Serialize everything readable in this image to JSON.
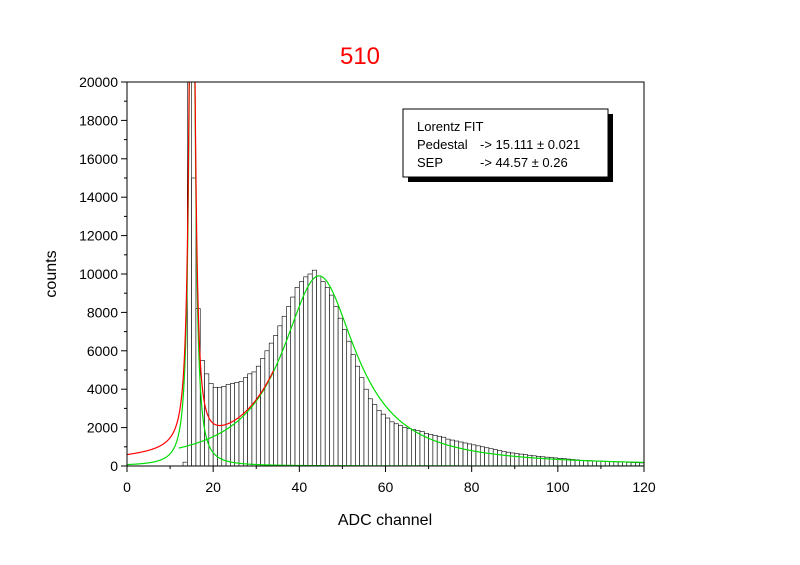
{
  "chart_data": {
    "type": "bar",
    "title": "510",
    "title_color": "#ff0000",
    "xlabel": "ADC channel",
    "ylabel": "counts",
    "xlim": [
      0,
      120
    ],
    "ylim": [
      0,
      20000
    ],
    "x_ticks": [
      "0",
      "20",
      "40",
      "60",
      "80",
      "100",
      "120"
    ],
    "y_ticks": [
      "0",
      "2000",
      "4000",
      "6000",
      "8000",
      "10000",
      "12000",
      "14000",
      "16000",
      "18000",
      "20000"
    ],
    "grid": false,
    "bin_width": 1,
    "bar_fill": "#ffffff",
    "bar_stroke": "#000000",
    "histogram": {
      "x": [
        0,
        1,
        2,
        3,
        4,
        5,
        6,
        7,
        8,
        9,
        10,
        11,
        12,
        13,
        14,
        15,
        16,
        17,
        18,
        19,
        20,
        21,
        22,
        23,
        24,
        25,
        26,
        27,
        28,
        29,
        30,
        31,
        32,
        33,
        34,
        35,
        36,
        37,
        38,
        39,
        40,
        41,
        42,
        43,
        44,
        45,
        46,
        47,
        48,
        49,
        50,
        51,
        52,
        53,
        54,
        55,
        56,
        57,
        58,
        59,
        60,
        61,
        62,
        63,
        64,
        65,
        66,
        67,
        68,
        69,
        70,
        71,
        72,
        73,
        74,
        75,
        76,
        77,
        78,
        79,
        80,
        81,
        82,
        83,
        84,
        85,
        86,
        87,
        88,
        89,
        90,
        91,
        92,
        93,
        94,
        95,
        96,
        97,
        98,
        99,
        100,
        101,
        102,
        103,
        104,
        105,
        106,
        107,
        108,
        109,
        110,
        111,
        112,
        113,
        114,
        115,
        116,
        117,
        118,
        119
      ],
      "counts": [
        0,
        0,
        0,
        0,
        0,
        0,
        0,
        0,
        0,
        0,
        0,
        0,
        0,
        200,
        20000,
        15000,
        8200,
        5500,
        4800,
        4300,
        4100,
        4100,
        4150,
        4250,
        4300,
        4350,
        4400,
        4600,
        4800,
        4900,
        5200,
        5600,
        6000,
        6400,
        6800,
        7300,
        7800,
        8300,
        8800,
        9300,
        9600,
        9850,
        10000,
        10200,
        9900,
        9600,
        9300,
        8900,
        8300,
        7700,
        7100,
        6500,
        5800,
        5200,
        4600,
        4000,
        3500,
        3200,
        2900,
        2700,
        2500,
        2300,
        2200,
        2100,
        2000,
        1950,
        1900,
        1850,
        1800,
        1700,
        1650,
        1600,
        1550,
        1500,
        1400,
        1350,
        1300,
        1250,
        1200,
        1150,
        1100,
        1050,
        1000,
        950,
        900,
        850,
        800,
        760,
        720,
        680,
        650,
        620,
        590,
        560,
        530,
        500,
        480,
        460,
        440,
        420,
        400,
        380,
        360,
        340,
        320,
        300,
        290,
        280,
        270,
        260,
        250,
        240,
        230,
        220,
        210,
        200,
        190,
        180,
        170,
        160
      ]
    },
    "fits": [
      {
        "type": "lorentz",
        "color": "#00dd00",
        "x0": 15.111,
        "gamma": 0.65,
        "amplitude": 40000,
        "xrange": [
          0,
          120
        ]
      },
      {
        "type": "lorentz",
        "color": "#00dd00",
        "x0": 44.57,
        "gamma": 10.5,
        "amplitude": 9900,
        "xrange": [
          12,
          120
        ]
      },
      {
        "type": "sum",
        "color": "#ff0000",
        "xrange": [
          0,
          34
        ]
      }
    ],
    "legend": {
      "position": "top-right",
      "lines": [
        {
          "label": "Lorentz FIT",
          "value": ""
        },
        {
          "label": "Pedestal",
          "value": "-> 15.111 ± 0.021"
        },
        {
          "label": "SEP",
          "value": "-> 44.57 ± 0.26"
        }
      ]
    }
  }
}
